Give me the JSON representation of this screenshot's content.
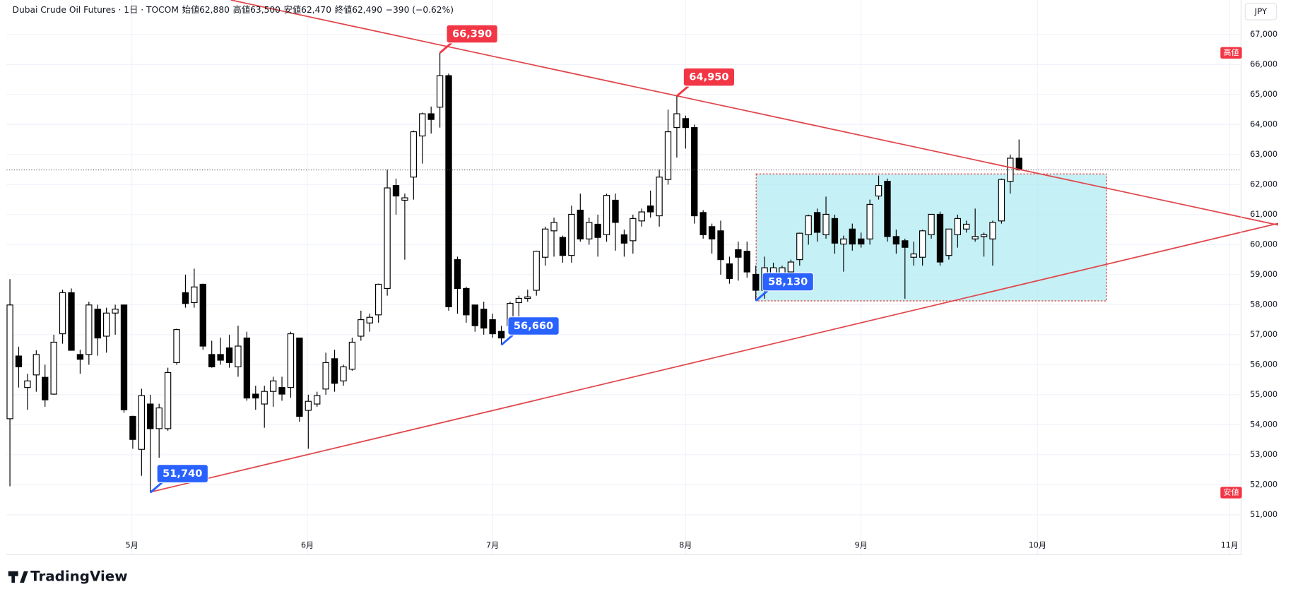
{
  "chart_data": {
    "type": "candlestick",
    "title": "Dubai Crude Oil Futures",
    "interval": "1日",
    "exchange": "TOCOM",
    "header": [
      "始値62,880",
      "高値63,500",
      "安値62,470",
      "終値62,490",
      "−390 (−0.62%)"
    ],
    "currency": "JPY",
    "high_tag": "高値",
    "low_tag": "安値",
    "logo": "TradingView",
    "up_color": "#ffffff",
    "down_color": "#000000",
    "border_color": "#000000",
    "xlim": [
      -0.38,
      140.3
    ],
    "xticks": [
      {
        "value": 13.9,
        "label": "5月"
      },
      {
        "value": 33.9,
        "label": "6月"
      },
      {
        "value": 55,
        "label": "7月"
      },
      {
        "value": 77,
        "label": "8月"
      },
      {
        "value": 97,
        "label": "9月"
      },
      {
        "value": 117.1,
        "label": "10月"
      },
      {
        "value": 139,
        "label": "11月"
      }
    ],
    "ylim": [
      50300,
      68150
    ],
    "yticks": [
      {
        "value": 51000,
        "label": "51,000"
      },
      {
        "value": 52000,
        "label": "52,000"
      },
      {
        "value": 53000,
        "label": "53,000"
      },
      {
        "value": 54000,
        "label": "54,000"
      },
      {
        "value": 55000,
        "label": "55,000"
      },
      {
        "value": 56000,
        "label": "56,000"
      },
      {
        "value": 57000,
        "label": "57,000"
      },
      {
        "value": 58000,
        "label": "58,000"
      },
      {
        "value": 59000,
        "label": "59,000"
      },
      {
        "value": 60000,
        "label": "60,000"
      },
      {
        "value": 61000,
        "label": "61,000"
      },
      {
        "value": 62000,
        "label": "62,000"
      },
      {
        "value": 63000,
        "label": "63,000"
      },
      {
        "value": 64000,
        "label": "64,000"
      },
      {
        "value": 65000,
        "label": "65,000"
      },
      {
        "value": 66000,
        "label": "66,000"
      },
      {
        "value": 67000,
        "label": "67,000"
      }
    ],
    "grid": true,
    "series": [
      {
        "x": [
          0,
          1,
          2,
          3,
          4,
          5,
          6,
          7,
          8,
          9,
          10,
          11,
          12,
          13,
          14,
          15,
          16,
          17,
          18,
          19,
          20,
          21,
          22,
          23,
          24,
          25,
          26,
          27,
          28,
          29,
          30,
          31,
          32,
          33,
          34,
          35,
          36,
          37,
          38,
          39,
          40,
          41,
          42,
          43,
          44,
          45,
          46,
          47,
          48,
          49,
          50,
          51,
          52,
          53,
          54,
          55,
          56,
          57,
          58,
          59,
          60,
          61,
          62,
          63,
          64,
          65,
          66,
          67,
          68,
          69,
          70,
          71,
          72,
          73,
          74,
          75,
          76,
          77,
          78,
          79,
          80,
          81,
          82,
          83,
          84,
          85,
          86,
          87,
          88,
          89,
          90,
          91,
          92,
          93,
          94,
          95,
          96,
          97,
          98,
          99,
          100,
          101,
          102,
          103,
          104,
          105,
          106,
          107,
          108,
          109,
          110,
          111,
          112,
          113,
          114,
          115
        ],
        "open": [
          54200,
          56290,
          55240,
          55660,
          55580,
          55020,
          57030,
          58400,
          56340,
          56340,
          57850,
          56950,
          57720,
          57990,
          54280,
          53180,
          54690,
          53870,
          53870,
          56070,
          58400,
          58070,
          58680,
          56340,
          56340,
          56560,
          55930,
          56890,
          55020,
          54690,
          55110,
          55240,
          55240,
          56890,
          54480,
          54690,
          55190,
          56200,
          55460,
          55850,
          56950,
          57390,
          57660,
          58540,
          61970,
          61480,
          62250,
          63620,
          64360,
          64580,
          65630,
          59500,
          58540,
          57990,
          57850,
          57500,
          57110,
          57300,
          58070,
          58210,
          58480,
          59580,
          60460,
          60240,
          59640,
          61150,
          60190,
          60680,
          60330,
          61480,
          60330,
          60130,
          60790,
          61290,
          60960,
          62170,
          63900,
          64200,
          63900,
          61070,
          60600,
          60460,
          59360,
          59830,
          59780,
          59010,
          58480,
          59030,
          58810,
          59090,
          59500,
          60330,
          61070,
          60330,
          60870,
          60020,
          60520,
          60190,
          60190,
          61620,
          62110,
          60270,
          60130,
          59580,
          59580,
          60330,
          61010,
          59640,
          60330,
          60520,
          60190,
          60270,
          60190,
          60790,
          62110,
          62880
        ],
        "high": [
          58850,
          56600,
          55700,
          56480,
          56000,
          57000,
          58500,
          58540,
          56500,
          58100,
          58000,
          57900,
          58000,
          58000,
          54300,
          55200,
          55000,
          54700,
          55900,
          57200,
          59000,
          59200,
          58700,
          56800,
          56900,
          57000,
          57300,
          57100,
          55300,
          55300,
          55600,
          55600,
          57100,
          56900,
          55000,
          55100,
          56400,
          56500,
          56000,
          56900,
          57800,
          57700,
          58700,
          62500,
          62200,
          61700,
          63800,
          64400,
          64600,
          66390,
          65700,
          59600,
          58600,
          58000,
          58100,
          57700,
          57300,
          58100,
          58300,
          58500,
          59800,
          60600,
          60900,
          60300,
          61300,
          61700,
          60900,
          61000,
          61700,
          61700,
          60500,
          61000,
          61200,
          61800,
          62500,
          64500,
          64950,
          64300,
          64000,
          61150,
          60700,
          60800,
          59600,
          60100,
          60100,
          59300,
          59600,
          59400,
          59300,
          59500,
          60400,
          61000,
          61200,
          61600,
          61000,
          60300,
          60700,
          60400,
          61500,
          62300,
          62200,
          60500,
          60200,
          60100,
          60500,
          61000,
          61100,
          60500,
          61000,
          60800,
          61200,
          60400,
          60800,
          62200,
          63000,
          63500
        ],
        "low": [
          51950,
          55240,
          54500,
          55100,
          54600,
          55000,
          56700,
          56480,
          55700,
          56000,
          56300,
          56400,
          57000,
          54400,
          53200,
          52300,
          51740,
          52900,
          53800,
          56000,
          57900,
          57900,
          56500,
          55900,
          56000,
          55900,
          55600,
          54800,
          54500,
          53900,
          54600,
          54800,
          54900,
          54100,
          53200,
          54600,
          55000,
          55100,
          55300,
          55800,
          56800,
          57100,
          57400,
          58300,
          61000,
          59500,
          61500,
          62700,
          63700,
          63900,
          57800,
          57700,
          57400,
          57100,
          57000,
          56900,
          56660,
          57000,
          57600,
          58100,
          58300,
          59300,
          59600,
          59400,
          59400,
          60100,
          60000,
          59600,
          60100,
          59800,
          59600,
          59700,
          60600,
          60900,
          60600,
          62000,
          62900,
          63200,
          60700,
          60200,
          59700,
          59000,
          58700,
          58800,
          58900,
          58130,
          58200,
          58600,
          58600,
          58500,
          59300,
          60000,
          60100,
          60200,
          59700,
          59100,
          59800,
          59900,
          60000,
          61500,
          60100,
          59700,
          58200,
          59300,
          59300,
          60200,
          59300,
          59500,
          59900,
          60400,
          60100,
          59600,
          59300,
          60700,
          61700,
          62470
        ],
        "close": [
          57990,
          55930,
          55460,
          56340,
          54830,
          56750,
          58400,
          56480,
          56180,
          57990,
          56890,
          57720,
          57850,
          54500,
          53510,
          54970,
          53870,
          54560,
          55740,
          57170,
          58040,
          58590,
          56620,
          55930,
          56150,
          56070,
          56620,
          54890,
          54890,
          55110,
          55460,
          55020,
          57030,
          54280,
          54780,
          54970,
          56070,
          55380,
          55930,
          56750,
          57500,
          57580,
          58680,
          61890,
          61620,
          61560,
          63760,
          64360,
          64170,
          65630,
          57930,
          58540,
          57660,
          57300,
          57220,
          57030,
          56890,
          58040,
          58210,
          58260,
          59780,
          60520,
          60740,
          59640,
          61010,
          60190,
          60740,
          60240,
          61640,
          60740,
          60050,
          60870,
          61090,
          61090,
          62250,
          63760,
          64360,
          63900,
          60960,
          60330,
          60190,
          59500,
          58870,
          59580,
          59090,
          58480,
          59230,
          59230,
          59230,
          59420,
          60380,
          60960,
          60410,
          61010,
          60050,
          60190,
          60020,
          60020,
          61340,
          61970,
          60270,
          60020,
          59910,
          59690,
          60460,
          61010,
          59420,
          60520,
          60870,
          60680,
          60270,
          60330,
          60740,
          62170,
          62880,
          62490
        ]
      }
    ],
    "annotations": [
      {
        "x": 49,
        "value": 66390,
        "label": "66,390",
        "color": "#f23645"
      },
      {
        "x": 76,
        "value": 64950,
        "label": "64,950",
        "color": "#f23645"
      },
      {
        "x": 56,
        "value": 56660,
        "label": "56,660",
        "color": "#2962ff"
      },
      {
        "x": 85,
        "value": 58130,
        "label": "58,130",
        "color": "#2962ff"
      },
      {
        "x": 16,
        "value": 51740,
        "label": "51,740",
        "color": "#2962ff"
      }
    ]
  }
}
